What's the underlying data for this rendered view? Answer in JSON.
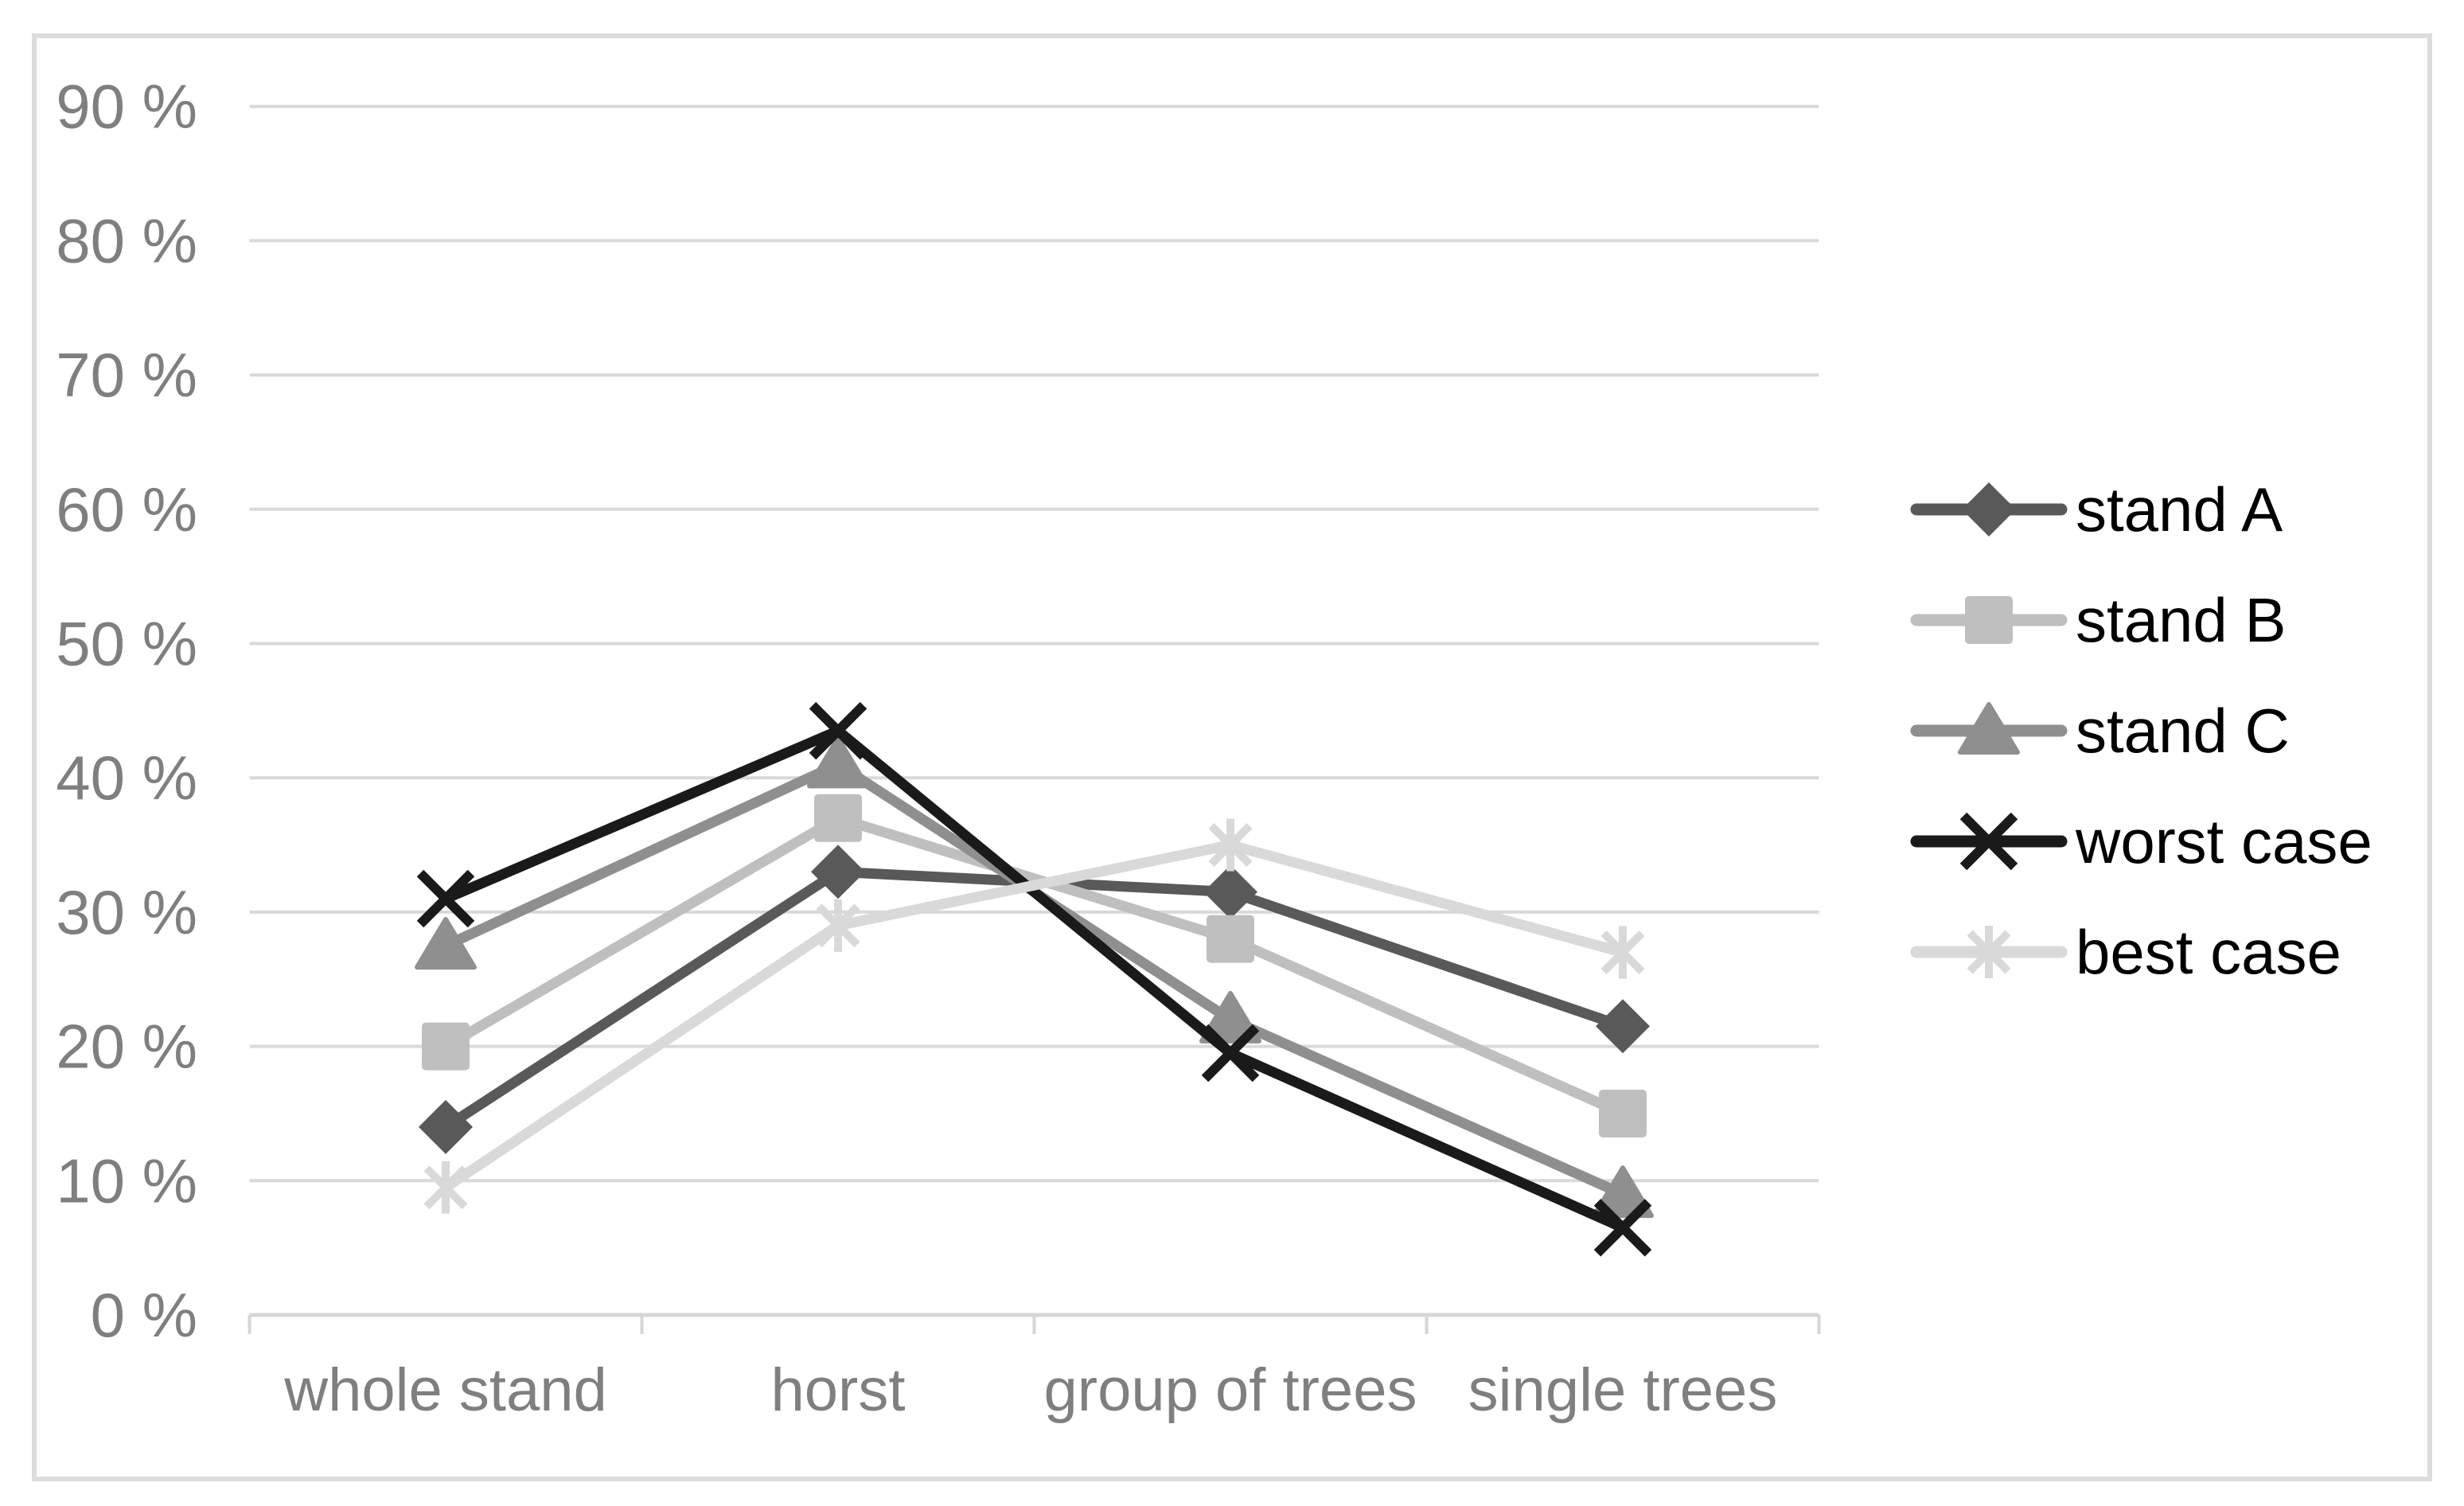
{
  "chart_data": {
    "type": "line",
    "title": "",
    "xlabel": "",
    "ylabel": "",
    "categories": [
      "whole stand",
      "horst",
      "group of trees",
      "single trees"
    ],
    "series": [
      {
        "name": "stand A",
        "marker": "diamond",
        "color": "#595959",
        "values": [
          14,
          33,
          31.5,
          21.5
        ]
      },
      {
        "name": "stand B",
        "marker": "square",
        "color": "#bfbfbf",
        "values": [
          20,
          37,
          28,
          15
        ]
      },
      {
        "name": "stand C",
        "marker": "triangle",
        "color": "#8f8f8f",
        "values": [
          27.5,
          41,
          22,
          9
        ]
      },
      {
        "name": "worst case",
        "marker": "x",
        "color": "#1a1a1a",
        "values": [
          31,
          43.5,
          19.5,
          6.5
        ]
      },
      {
        "name": "best case",
        "marker": "asterisk",
        "color": "#d9d9d9",
        "values": [
          9.5,
          29,
          35,
          27
        ]
      }
    ],
    "y_axis": {
      "tick_values": [
        0,
        10,
        20,
        30,
        40,
        50,
        60,
        70,
        80,
        90
      ],
      "tick_labels": [
        "0 %",
        "10 %",
        "20 %",
        "30 %",
        "40 %",
        "50 %",
        "60 %",
        "70 %",
        "80 %",
        "90 %"
      ],
      "min": 0,
      "max": 90
    },
    "grid": true,
    "legend_position": "right",
    "colors": {
      "axis_text": "#7f7f7f",
      "legend_text": "#000000",
      "gridline": "#d9d9d9",
      "axis_line": "#d6d6d6",
      "frame_border": "#dcdcdc",
      "background": "#ffffff"
    }
  }
}
